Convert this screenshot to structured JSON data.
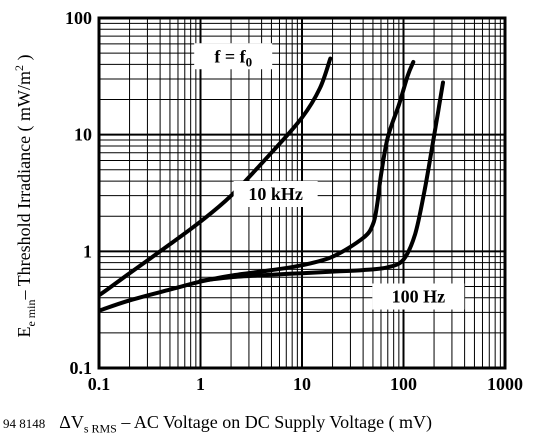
{
  "chart_data": {
    "type": "line",
    "figure_code": "94 8148",
    "xscale": "log",
    "yscale": "log",
    "xlim": [
      0.1,
      1000
    ],
    "ylim": [
      0.1,
      100
    ],
    "xticks": [
      "0.1",
      "1",
      "10",
      "100",
      "1000"
    ],
    "yticks": [
      "0.1",
      "1",
      "10",
      "100"
    ],
    "xlabel": "ΔV_s RMS – AC Voltage on DC Supply Voltage ( mV)",
    "xlabel_parts": {
      "delta_v": "ΔV",
      "sub": "s RMS",
      "rest": " – AC Voltage on DC Supply Voltage ( mV)"
    },
    "ylabel": "E_e min – Threshold Irradiance ( mW/m² )",
    "ylabel_parts": {
      "e": "E",
      "sub": "e min",
      "rest": "– Threshold Irradiance ( mW/m",
      "sup": "2",
      "close": " )"
    },
    "grid": true,
    "series": [
      {
        "name": "f = f0",
        "x": [
          0.07,
          0.1,
          0.2,
          0.5,
          1,
          2,
          5,
          10,
          15,
          19
        ],
        "y": [
          0.36,
          0.42,
          0.65,
          1.15,
          1.8,
          3.0,
          7.0,
          14,
          25,
          45
        ]
      },
      {
        "name": "10 kHz",
        "x": [
          0.07,
          0.1,
          0.2,
          0.5,
          1,
          2,
          5,
          10,
          20,
          40,
          50,
          55,
          60,
          70,
          90,
          110,
          125
        ],
        "y": [
          0.28,
          0.31,
          0.38,
          0.47,
          0.55,
          0.62,
          0.69,
          0.76,
          0.9,
          1.3,
          1.7,
          2.5,
          4.5,
          9.5,
          18,
          32,
          42
        ]
      },
      {
        "name": "100 Hz",
        "x": [
          1,
          2,
          5,
          10,
          20,
          40,
          70,
          100,
          130,
          160,
          190,
          220,
          245
        ],
        "y": [
          0.56,
          0.6,
          0.63,
          0.65,
          0.67,
          0.69,
          0.73,
          0.85,
          1.4,
          3.2,
          7.5,
          16,
          28
        ]
      }
    ]
  }
}
